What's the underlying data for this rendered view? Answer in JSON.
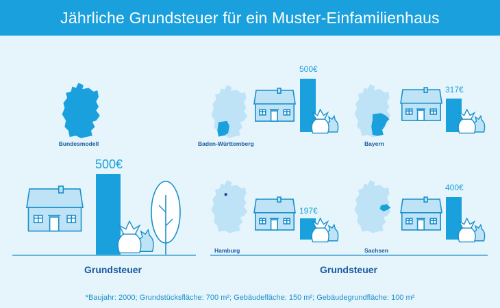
{
  "title": "Jährliche Grundsteuer für ein Muster-Einfamilienhaus",
  "footnote": "*Baujahr: 2000; Grundstücksfläche: 700 m²; Gebäudefläche: 150 m²; Gebäudegrundfläche: 100 m²",
  "section_labels": {
    "left": "Grundsteuer",
    "right": "Grundsteuer"
  },
  "colors": {
    "header": "#1aa0dc",
    "background": "#e6f4fb",
    "bar": "#1aa0dc",
    "house_fill": "#bfe3f6",
    "outline": "#1a8fcb",
    "label": "#1a5aa0",
    "map_light": "#bfe3f6",
    "map_highlight": "#1aa0dc"
  },
  "chart_data": {
    "type": "bar",
    "title": "Jährliche Grundsteuer für ein Muster-Einfamilienhaus",
    "unit": "€",
    "categories": [
      "Bundesmodell",
      "Baden-Württemberg",
      "Bayern",
      "Hamburg",
      "Sachsen"
    ],
    "values": [
      500,
      500,
      317,
      197,
      400
    ],
    "value_labels": [
      "500€",
      "500€",
      "317€",
      "197€",
      "400€"
    ]
  }
}
